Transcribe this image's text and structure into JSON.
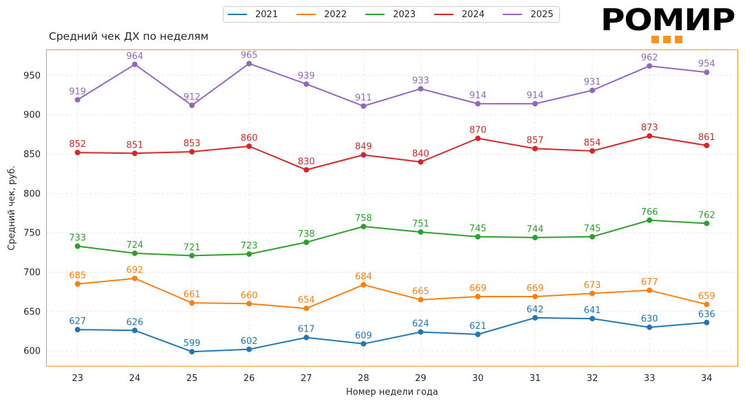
{
  "logo": {
    "text": "РОМИР",
    "accent_color": "#f7931e"
  },
  "chart_data": {
    "type": "line",
    "title": "Средний чек ДХ по неделям",
    "xlabel": "Номер недели года",
    "ylabel": "Средний чек, руб.",
    "x": [
      23,
      24,
      25,
      26,
      27,
      28,
      29,
      30,
      31,
      32,
      33,
      34
    ],
    "x_ticks": [
      "23",
      "24",
      "25",
      "26",
      "27",
      "28",
      "29",
      "30",
      "31",
      "32",
      "33",
      "34"
    ],
    "y_ticks": [
      "600",
      "650",
      "700",
      "750",
      "800",
      "850",
      "900",
      "950"
    ],
    "y_tick_values": [
      600,
      650,
      700,
      750,
      800,
      850,
      900,
      950
    ],
    "ylim": [
      580,
      983
    ],
    "xlim": [
      22.45,
      34.55
    ],
    "grid": true,
    "legend_position": "top-center",
    "frame_color": "#f7931e",
    "series": [
      {
        "name": "2021",
        "color": "#1f77b4",
        "values": [
          627,
          626,
          599,
          602,
          617,
          609,
          624,
          621,
          642,
          641,
          630,
          636
        ]
      },
      {
        "name": "2022",
        "color": "#ff7f0e",
        "values": [
          685,
          692,
          661,
          660,
          654,
          684,
          665,
          669,
          669,
          673,
          677,
          659
        ]
      },
      {
        "name": "2023",
        "color": "#2ca02c",
        "values": [
          733,
          724,
          721,
          723,
          738,
          758,
          751,
          745,
          744,
          745,
          766,
          762
        ]
      },
      {
        "name": "2024",
        "color": "#d62728",
        "values": [
          852,
          851,
          853,
          860,
          830,
          849,
          840,
          870,
          857,
          854,
          873,
          861
        ]
      },
      {
        "name": "2025",
        "color": "#9467bd",
        "values": [
          919,
          964,
          912,
          965,
          939,
          911,
          933,
          914,
          914,
          931,
          962,
          954
        ]
      }
    ]
  }
}
